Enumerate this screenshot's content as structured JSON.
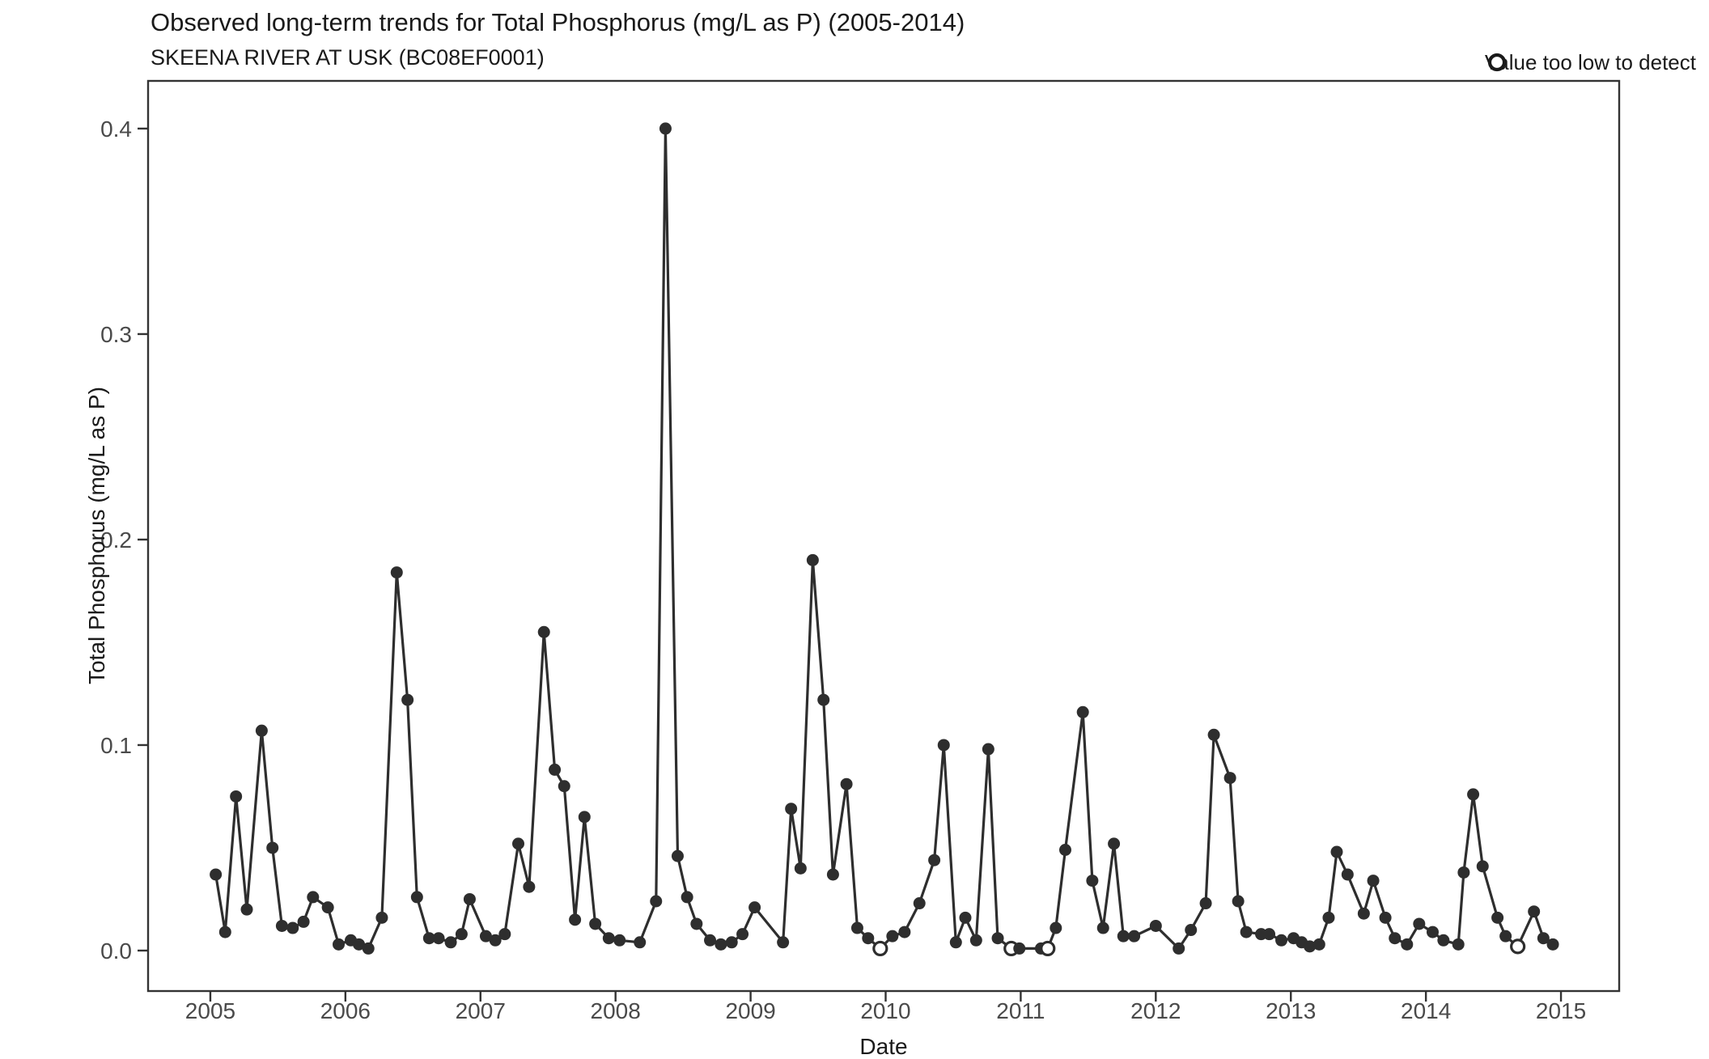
{
  "header": {
    "title": "Observed long-term trends for Total Phosphorus (mg/L as P) (2005-2014)",
    "subtitle": "SKEENA RIVER AT USK (BC08EF0001)"
  },
  "legend": {
    "label": "Value too low to detect",
    "marker": "open-circle"
  },
  "colors": {
    "point": "#2e2e2e",
    "line": "#2e2e2e",
    "open_point_fill": "#ffffff",
    "axis_text": "#4a4a4a",
    "panel_border": "#333333",
    "title_text": "#1a1a1a",
    "background": "#ffffff"
  },
  "chart_data": {
    "type": "line",
    "title": "Observed long-term trends for Total Phosphorus (mg/L as P) (2005-2014)",
    "subtitle": "SKEENA RIVER AT USK (BC08EF0001)",
    "xlabel": "Date",
    "ylabel": "Total Phosphorus (mg/L as P)",
    "x_ticks": [
      2005,
      2006,
      2007,
      2008,
      2009,
      2010,
      2011,
      2012,
      2013,
      2014,
      2015
    ],
    "y_ticks": [
      0.0,
      0.1,
      0.2,
      0.3,
      0.4
    ],
    "y_tick_labels": [
      "0.0",
      "0.1",
      "0.2",
      "0.3",
      "0.4"
    ],
    "xlim": [
      2004.539,
      2015.431
    ],
    "ylim": [
      -0.0197,
      0.4232
    ],
    "grid": false,
    "legend_position": "top-right",
    "series_name": "Total Phosphorus (mg/L as P)",
    "nondetect_flag_meaning": "1 = value too low to detect (open circle marker)",
    "points": [
      [
        2005.04,
        0.037,
        0
      ],
      [
        2005.11,
        0.009,
        0
      ],
      [
        2005.19,
        0.075,
        0
      ],
      [
        2005.27,
        0.02,
        0
      ],
      [
        2005.38,
        0.107,
        0
      ],
      [
        2005.46,
        0.05,
        0
      ],
      [
        2005.53,
        0.012,
        0
      ],
      [
        2005.61,
        0.011,
        0
      ],
      [
        2005.69,
        0.014,
        0
      ],
      [
        2005.76,
        0.026,
        0
      ],
      [
        2005.87,
        0.021,
        0
      ],
      [
        2005.95,
        0.003,
        0
      ],
      [
        2006.04,
        0.005,
        0
      ],
      [
        2006.1,
        0.003,
        0
      ],
      [
        2006.17,
        0.001,
        0
      ],
      [
        2006.27,
        0.016,
        0
      ],
      [
        2006.38,
        0.184,
        0
      ],
      [
        2006.46,
        0.122,
        0
      ],
      [
        2006.53,
        0.026,
        0
      ],
      [
        2006.62,
        0.006,
        0
      ],
      [
        2006.69,
        0.006,
        0
      ],
      [
        2006.78,
        0.004,
        0
      ],
      [
        2006.86,
        0.008,
        0
      ],
      [
        2006.92,
        0.025,
        0
      ],
      [
        2007.04,
        0.007,
        0
      ],
      [
        2007.11,
        0.005,
        0
      ],
      [
        2007.18,
        0.008,
        0
      ],
      [
        2007.28,
        0.052,
        0
      ],
      [
        2007.36,
        0.031,
        0
      ],
      [
        2007.47,
        0.155,
        0
      ],
      [
        2007.55,
        0.088,
        0
      ],
      [
        2007.62,
        0.08,
        0
      ],
      [
        2007.7,
        0.015,
        0
      ],
      [
        2007.77,
        0.065,
        0
      ],
      [
        2007.85,
        0.013,
        0
      ],
      [
        2007.95,
        0.006,
        0
      ],
      [
        2008.03,
        0.005,
        0
      ],
      [
        2008.18,
        0.004,
        0
      ],
      [
        2008.3,
        0.024,
        0
      ],
      [
        2008.37,
        0.4,
        0
      ],
      [
        2008.46,
        0.046,
        0
      ],
      [
        2008.53,
        0.026,
        0
      ],
      [
        2008.6,
        0.013,
        0
      ],
      [
        2008.7,
        0.005,
        0
      ],
      [
        2008.78,
        0.003,
        0
      ],
      [
        2008.86,
        0.004,
        0
      ],
      [
        2008.94,
        0.008,
        0
      ],
      [
        2009.03,
        0.021,
        0
      ],
      [
        2009.24,
        0.004,
        0
      ],
      [
        2009.3,
        0.069,
        0
      ],
      [
        2009.37,
        0.04,
        0
      ],
      [
        2009.46,
        0.19,
        0
      ],
      [
        2009.54,
        0.122,
        0
      ],
      [
        2009.61,
        0.037,
        0
      ],
      [
        2009.71,
        0.081,
        0
      ],
      [
        2009.79,
        0.011,
        0
      ],
      [
        2009.87,
        0.006,
        0
      ],
      [
        2009.96,
        0.001,
        1
      ],
      [
        2010.05,
        0.007,
        0
      ],
      [
        2010.14,
        0.009,
        0
      ],
      [
        2010.25,
        0.023,
        0
      ],
      [
        2010.36,
        0.044,
        0
      ],
      [
        2010.43,
        0.1,
        0
      ],
      [
        2010.52,
        0.004,
        0
      ],
      [
        2010.59,
        0.016,
        0
      ],
      [
        2010.67,
        0.005,
        0
      ],
      [
        2010.76,
        0.098,
        0
      ],
      [
        2010.83,
        0.006,
        0
      ],
      [
        2010.93,
        0.001,
        1
      ],
      [
        2010.99,
        0.001,
        0
      ],
      [
        2011.15,
        0.001,
        0
      ],
      [
        2011.2,
        0.001,
        1
      ],
      [
        2011.26,
        0.011,
        0
      ],
      [
        2011.33,
        0.049,
        0
      ],
      [
        2011.46,
        0.116,
        0
      ],
      [
        2011.53,
        0.034,
        0
      ],
      [
        2011.61,
        0.011,
        0
      ],
      [
        2011.69,
        0.052,
        0
      ],
      [
        2011.76,
        0.007,
        0
      ],
      [
        2011.84,
        0.007,
        0
      ],
      [
        2012.0,
        0.012,
        0
      ],
      [
        2012.17,
        0.001,
        0
      ],
      [
        2012.26,
        0.01,
        0
      ],
      [
        2012.37,
        0.023,
        0
      ],
      [
        2012.43,
        0.105,
        0
      ],
      [
        2012.55,
        0.084,
        0
      ],
      [
        2012.61,
        0.024,
        0
      ],
      [
        2012.67,
        0.009,
        0
      ],
      [
        2012.78,
        0.008,
        0
      ],
      [
        2012.84,
        0.008,
        0
      ],
      [
        2012.93,
        0.005,
        0
      ],
      [
        2013.02,
        0.006,
        0
      ],
      [
        2013.08,
        0.004,
        0
      ],
      [
        2013.14,
        0.002,
        0
      ],
      [
        2013.21,
        0.003,
        0
      ],
      [
        2013.28,
        0.016,
        0
      ],
      [
        2013.34,
        0.048,
        0
      ],
      [
        2013.42,
        0.037,
        0
      ],
      [
        2013.54,
        0.018,
        0
      ],
      [
        2013.61,
        0.034,
        0
      ],
      [
        2013.7,
        0.016,
        0
      ],
      [
        2013.77,
        0.006,
        0
      ],
      [
        2013.86,
        0.003,
        0
      ],
      [
        2013.95,
        0.013,
        0
      ],
      [
        2014.05,
        0.009,
        0
      ],
      [
        2014.13,
        0.005,
        0
      ],
      [
        2014.24,
        0.003,
        0
      ],
      [
        2014.28,
        0.038,
        0
      ],
      [
        2014.35,
        0.076,
        0
      ],
      [
        2014.42,
        0.041,
        0
      ],
      [
        2014.53,
        0.016,
        0
      ],
      [
        2014.59,
        0.007,
        0
      ],
      [
        2014.68,
        0.002,
        1
      ],
      [
        2014.8,
        0.019,
        0
      ],
      [
        2014.87,
        0.006,
        0
      ],
      [
        2014.94,
        0.003,
        0
      ]
    ]
  }
}
